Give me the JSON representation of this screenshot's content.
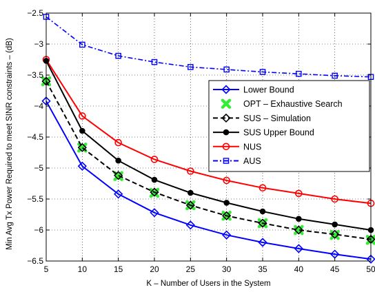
{
  "chart_data": {
    "type": "line",
    "title": "",
    "xlabel": "K – Number of Users in the System",
    "ylabel": "Min Avg Tx Power Required to meet SINR constraints – (dB)",
    "xlim": [
      5,
      50
    ],
    "ylim": [
      -6.5,
      -2.5
    ],
    "xticks": [
      5,
      10,
      15,
      20,
      25,
      30,
      35,
      40,
      45,
      50
    ],
    "xtick_labels": [
      "5",
      "10",
      "15",
      "20",
      "25",
      "30",
      "35",
      "40",
      "45",
      "50"
    ],
    "yticks": [
      -6.5,
      -6,
      -5.5,
      -5,
      -4.5,
      -4,
      -3.5,
      -3,
      -2.5
    ],
    "ytick_labels": [
      "−6.5",
      "−6",
      "−5.5",
      "−5",
      "−4.5",
      "−4",
      "−3.5",
      "−3",
      "−2.5"
    ],
    "grid": true,
    "legend_position": "center-right",
    "x": [
      5,
      10,
      15,
      20,
      25,
      30,
      35,
      40,
      45,
      50
    ],
    "series": [
      {
        "name": "Lower Bound",
        "color": "#0000ff",
        "line": "solid",
        "marker": "diamond",
        "values": [
          -3.92,
          -4.97,
          -5.42,
          -5.72,
          -5.92,
          -6.08,
          -6.2,
          -6.3,
          -6.39,
          -6.47
        ]
      },
      {
        "name": "OPT – Exhaustive Search",
        "color": "#33ee33",
        "line": "none",
        "marker": "x",
        "values": [
          -3.6,
          -4.67,
          -5.13,
          -5.4,
          -5.6,
          -5.77,
          -5.89,
          -6.0,
          -6.08,
          -6.16
        ]
      },
      {
        "name": "SUS – Simulation",
        "color": "#000000",
        "line": "dashed",
        "marker": "diamond",
        "values": [
          -3.6,
          -4.67,
          -5.12,
          -5.39,
          -5.6,
          -5.77,
          -5.89,
          -6.0,
          -6.07,
          -6.15
        ]
      },
      {
        "name": "SUS Upper Bound",
        "color": "#000000",
        "line": "solid",
        "marker": "dot",
        "values": [
          -3.27,
          -4.4,
          -4.88,
          -5.19,
          -5.4,
          -5.56,
          -5.7,
          -5.82,
          -5.91,
          -6.0
        ]
      },
      {
        "name": "NUS",
        "color": "#ff0000",
        "line": "solid",
        "marker": "circle",
        "values": [
          -3.25,
          -4.16,
          -4.59,
          -4.86,
          -5.05,
          -5.2,
          -5.32,
          -5.41,
          -5.5,
          -5.57
        ]
      },
      {
        "name": "AUS",
        "color": "#0000ff",
        "line": "dashdot",
        "marker": "square",
        "values": [
          -2.56,
          -3.01,
          -3.19,
          -3.29,
          -3.37,
          -3.41,
          -3.45,
          -3.48,
          -3.51,
          -3.53
        ]
      }
    ]
  }
}
